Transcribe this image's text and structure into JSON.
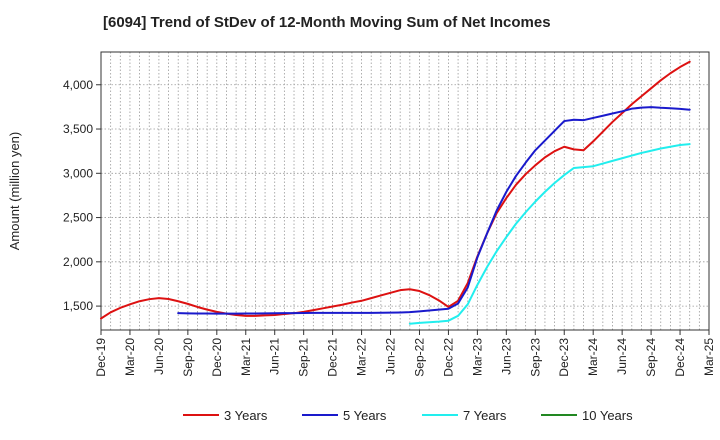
{
  "chart_data": {
    "type": "line",
    "title": "[6094]  Trend of StDev of 12-Month Moving Sum of Net Incomes",
    "ylabel": "Amount (million yen)",
    "xlabel": "",
    "x_ticks": [
      "Dec-19",
      "Mar-20",
      "Jun-20",
      "Sep-20",
      "Dec-20",
      "Mar-21",
      "Jun-21",
      "Sep-21",
      "Dec-21",
      "Mar-22",
      "Jun-22",
      "Sep-22",
      "Dec-22",
      "Mar-23",
      "Jun-23",
      "Sep-23",
      "Dec-23",
      "Mar-24",
      "Jun-24",
      "Sep-24",
      "Dec-24",
      "Mar-25"
    ],
    "y_ticks": [
      1500,
      2000,
      2500,
      3000,
      3500,
      4000
    ],
    "y_tick_labels": [
      "1,500",
      "2,000",
      "2,500",
      "3,000",
      "3,500",
      "4,000"
    ],
    "xlim": [
      "Dec-19",
      "Mar-25"
    ],
    "ylim": [
      1230,
      4370
    ],
    "grid": true,
    "legend_position": "bottom",
    "series": [
      {
        "name": "3 Years",
        "color": "#dd1111",
        "points": [
          [
            "Dec-19",
            1360
          ],
          [
            "Jan-20",
            1430
          ],
          [
            "Feb-20",
            1480
          ],
          [
            "Mar-20",
            1520
          ],
          [
            "Apr-20",
            1555
          ],
          [
            "May-20",
            1578
          ],
          [
            "Jun-20",
            1590
          ],
          [
            "Jul-20",
            1580
          ],
          [
            "Aug-20",
            1555
          ],
          [
            "Sep-20",
            1525
          ],
          [
            "Oct-20",
            1490
          ],
          [
            "Nov-20",
            1460
          ],
          [
            "Dec-20",
            1435
          ],
          [
            "Jan-21",
            1415
          ],
          [
            "Feb-21",
            1400
          ],
          [
            "Mar-21",
            1390
          ],
          [
            "Apr-21",
            1390
          ],
          [
            "May-21",
            1395
          ],
          [
            "Jun-21",
            1400
          ],
          [
            "Jul-21",
            1410
          ],
          [
            "Aug-21",
            1420
          ],
          [
            "Sep-21",
            1435
          ],
          [
            "Oct-21",
            1455
          ],
          [
            "Nov-21",
            1475
          ],
          [
            "Dec-21",
            1495
          ],
          [
            "Jan-22",
            1515
          ],
          [
            "Feb-22",
            1540
          ],
          [
            "Mar-22",
            1560
          ],
          [
            "Apr-22",
            1590
          ],
          [
            "May-22",
            1620
          ],
          [
            "Jun-22",
            1650
          ],
          [
            "Jul-22",
            1680
          ],
          [
            "Aug-22",
            1690
          ],
          [
            "Sep-22",
            1670
          ],
          [
            "Oct-22",
            1625
          ],
          [
            "Nov-22",
            1565
          ],
          [
            "Dec-22",
            1490
          ],
          [
            "Jan-23",
            1560
          ],
          [
            "Feb-23",
            1760
          ],
          [
            "Mar-23",
            2060
          ],
          [
            "Apr-23",
            2320
          ],
          [
            "May-23",
            2550
          ],
          [
            "Jun-23",
            2720
          ],
          [
            "Jul-23",
            2870
          ],
          [
            "Aug-23",
            2990
          ],
          [
            "Sep-23",
            3090
          ],
          [
            "Oct-23",
            3180
          ],
          [
            "Nov-23",
            3250
          ],
          [
            "Dec-23",
            3300
          ],
          [
            "Jan-24",
            3270
          ],
          [
            "Feb-24",
            3260
          ],
          [
            "Mar-24",
            3360
          ],
          [
            "Apr-24",
            3470
          ],
          [
            "May-24",
            3580
          ],
          [
            "Jun-24",
            3680
          ],
          [
            "Jul-24",
            3780
          ],
          [
            "Aug-24",
            3870
          ],
          [
            "Sep-24",
            3960
          ],
          [
            "Oct-24",
            4050
          ],
          [
            "Nov-24",
            4130
          ],
          [
            "Dec-24",
            4200
          ],
          [
            "Jan-25",
            4260
          ]
        ]
      },
      {
        "name": "5 Years",
        "color": "#1a1acc",
        "points": [
          [
            "Aug-20",
            1420
          ],
          [
            "Sep-20",
            1418
          ],
          [
            "Oct-20",
            1417
          ],
          [
            "Nov-20",
            1416
          ],
          [
            "Dec-20",
            1415
          ],
          [
            "Jan-21",
            1415
          ],
          [
            "Feb-21",
            1415
          ],
          [
            "Mar-21",
            1416
          ],
          [
            "Apr-21",
            1417
          ],
          [
            "May-21",
            1418
          ],
          [
            "Jun-21",
            1419
          ],
          [
            "Jul-21",
            1420
          ],
          [
            "Aug-21",
            1421
          ],
          [
            "Sep-21",
            1422
          ],
          [
            "Oct-21",
            1423
          ],
          [
            "Nov-21",
            1424
          ],
          [
            "Dec-21",
            1424
          ],
          [
            "Jan-22",
            1424
          ],
          [
            "Feb-22",
            1424
          ],
          [
            "Mar-22",
            1424
          ],
          [
            "Apr-22",
            1424
          ],
          [
            "May-22",
            1425
          ],
          [
            "Jun-22",
            1426
          ],
          [
            "Jul-22",
            1428
          ],
          [
            "Aug-22",
            1432
          ],
          [
            "Sep-22",
            1440
          ],
          [
            "Oct-22",
            1450
          ],
          [
            "Nov-22",
            1460
          ],
          [
            "Dec-22",
            1470
          ],
          [
            "Jan-23",
            1530
          ],
          [
            "Feb-23",
            1710
          ],
          [
            "Mar-23",
            2050
          ],
          [
            "Apr-23",
            2320
          ],
          [
            "May-23",
            2580
          ],
          [
            "Jun-23",
            2790
          ],
          [
            "Jul-23",
            2970
          ],
          [
            "Aug-23",
            3120
          ],
          [
            "Sep-23",
            3260
          ],
          [
            "Oct-23",
            3370
          ],
          [
            "Nov-23",
            3480
          ],
          [
            "Dec-23",
            3590
          ],
          [
            "Jan-24",
            3605
          ],
          [
            "Feb-24",
            3600
          ],
          [
            "Mar-24",
            3625
          ],
          [
            "Apr-24",
            3650
          ],
          [
            "May-24",
            3675
          ],
          [
            "Jun-24",
            3700
          ],
          [
            "Jul-24",
            3730
          ],
          [
            "Aug-24",
            3742
          ],
          [
            "Sep-24",
            3748
          ],
          [
            "Oct-24",
            3740
          ],
          [
            "Nov-24",
            3735
          ],
          [
            "Dec-24",
            3728
          ],
          [
            "Jan-25",
            3718
          ]
        ]
      },
      {
        "name": "7 Years",
        "color": "#22eeee",
        "points": [
          [
            "Aug-22",
            1300
          ],
          [
            "Sep-22",
            1310
          ],
          [
            "Oct-22",
            1318
          ],
          [
            "Nov-22",
            1325
          ],
          [
            "Dec-22",
            1335
          ],
          [
            "Jan-23",
            1390
          ],
          [
            "Feb-23",
            1520
          ],
          [
            "Mar-23",
            1740
          ],
          [
            "Apr-23",
            1940
          ],
          [
            "May-23",
            2120
          ],
          [
            "Jun-23",
            2280
          ],
          [
            "Jul-23",
            2430
          ],
          [
            "Aug-23",
            2560
          ],
          [
            "Sep-23",
            2680
          ],
          [
            "Oct-23",
            2790
          ],
          [
            "Nov-23",
            2890
          ],
          [
            "Dec-23",
            2980
          ],
          [
            "Jan-24",
            3060
          ],
          [
            "Feb-24",
            3070
          ],
          [
            "Mar-24",
            3080
          ],
          [
            "Apr-24",
            3110
          ],
          [
            "May-24",
            3140
          ],
          [
            "Jun-24",
            3170
          ],
          [
            "Jul-24",
            3200
          ],
          [
            "Aug-24",
            3230
          ],
          [
            "Sep-24",
            3255
          ],
          [
            "Oct-24",
            3280
          ],
          [
            "Nov-24",
            3300
          ],
          [
            "Dec-24",
            3320
          ],
          [
            "Jan-25",
            3330
          ]
        ]
      },
      {
        "name": "10 Years",
        "color": "#228822",
        "points": []
      }
    ]
  }
}
